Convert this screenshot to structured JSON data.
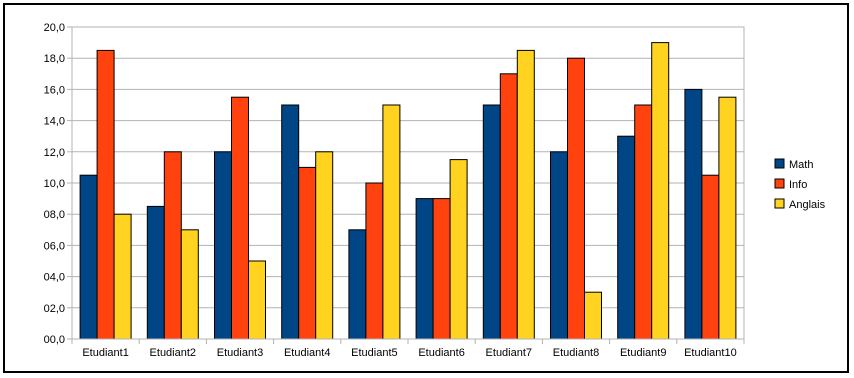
{
  "chart_data": {
    "type": "bar",
    "categories": [
      "Etudiant1",
      "Etudiant2",
      "Etudiant3",
      "Etudiant4",
      "Etudiant5",
      "Etudiant6",
      "Etudiant7",
      "Etudiant8",
      "Etudiant9",
      "Etudiant10"
    ],
    "series": [
      {
        "name": "Math",
        "color": "#004586",
        "values": [
          10.5,
          8.5,
          12,
          15,
          7,
          9,
          15,
          12,
          13,
          16
        ]
      },
      {
        "name": "Info",
        "color": "#ff420e",
        "values": [
          18.5,
          12,
          15.5,
          11,
          10,
          9,
          17,
          18,
          15,
          10.5
        ]
      },
      {
        "name": "Anglais",
        "color": "#ffd320",
        "values": [
          8,
          7,
          5,
          12,
          15,
          11.5,
          18.5,
          3,
          19,
          15.5
        ]
      }
    ],
    "ylim": [
      0,
      20
    ],
    "yticks": [
      "00,0",
      "02,0",
      "04,0",
      "06,0",
      "08,0",
      "10,0",
      "12,0",
      "14,0",
      "16,0",
      "18,0",
      "20,0"
    ],
    "grid": true,
    "legend_position": "right"
  }
}
